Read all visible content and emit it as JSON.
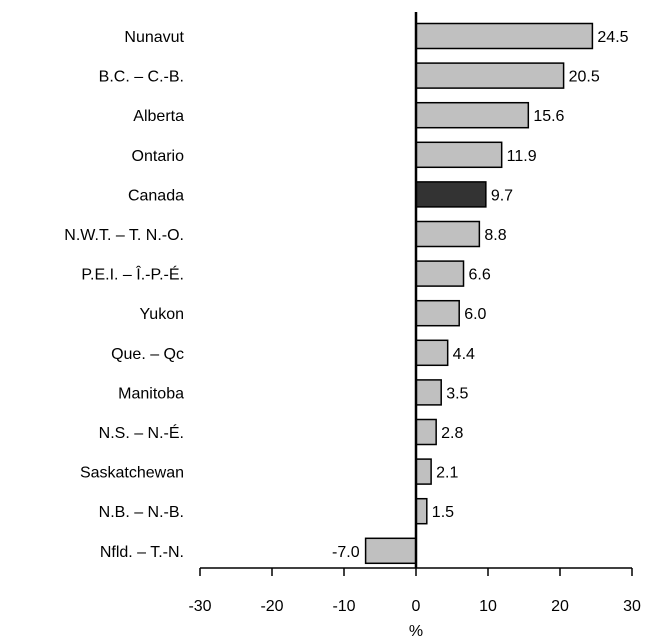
{
  "chart_data": {
    "type": "bar",
    "orientation": "horizontal",
    "categories": [
      "Nunavut",
      "B.C. – C.-B.",
      "Alberta",
      "Ontario",
      "Canada",
      "N.W.T. – T. N.-O.",
      "P.E.I. – Î.-P.-É.",
      "Yukon",
      "Que. – Qc",
      "Manitoba",
      "N.S. – N.-É.",
      "Saskatchewan",
      "N.B. – N.-B.",
      "Nfld. – T.-N."
    ],
    "values": [
      24.5,
      20.5,
      15.6,
      11.9,
      9.7,
      8.8,
      6.6,
      6.0,
      4.4,
      3.5,
      2.8,
      2.1,
      1.5,
      -7.0
    ],
    "value_labels": [
      "24.5",
      "20.5",
      "15.6",
      "11.9",
      "9.7",
      "8.8",
      "6.6",
      "6.0",
      "4.4",
      "3.5",
      "2.8",
      "2.1",
      "1.5",
      "-7.0"
    ],
    "highlight_category": "Canada",
    "xlabel": "%",
    "xlim": [
      -30,
      30
    ],
    "xticks": [
      "-30",
      "-20",
      "-10",
      "0",
      "10",
      "20",
      "30"
    ],
    "grid": false,
    "colors": {
      "bar": "#c0c0c0",
      "highlight_bar": "#333333",
      "outline": "#000000"
    }
  }
}
